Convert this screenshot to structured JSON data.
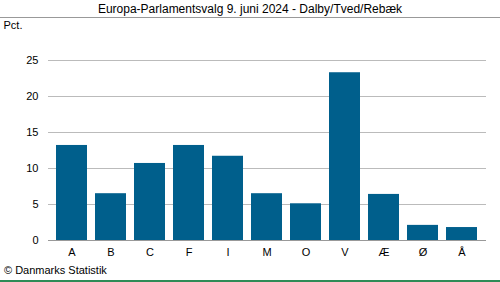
{
  "chart_data": {
    "type": "bar",
    "title": "Europa-Parlamentsvalg 9. juni 2024 - Dalby/Tved/Rebæk",
    "y_label": "Pct.",
    "caption": "© Danmarks Statistik",
    "categories": [
      "A",
      "B",
      "C",
      "F",
      "I",
      "M",
      "O",
      "V",
      "Æ",
      "Ø",
      "Å"
    ],
    "values": [
      13.2,
      6.5,
      10.7,
      13.2,
      11.7,
      6.5,
      5.1,
      23.3,
      6.4,
      2.1,
      1.8
    ],
    "color": "#005f8c",
    "ylim": [
      0,
      25
    ],
    "yticks": [
      0,
      5,
      10,
      15,
      20,
      25
    ],
    "grid": true
  }
}
